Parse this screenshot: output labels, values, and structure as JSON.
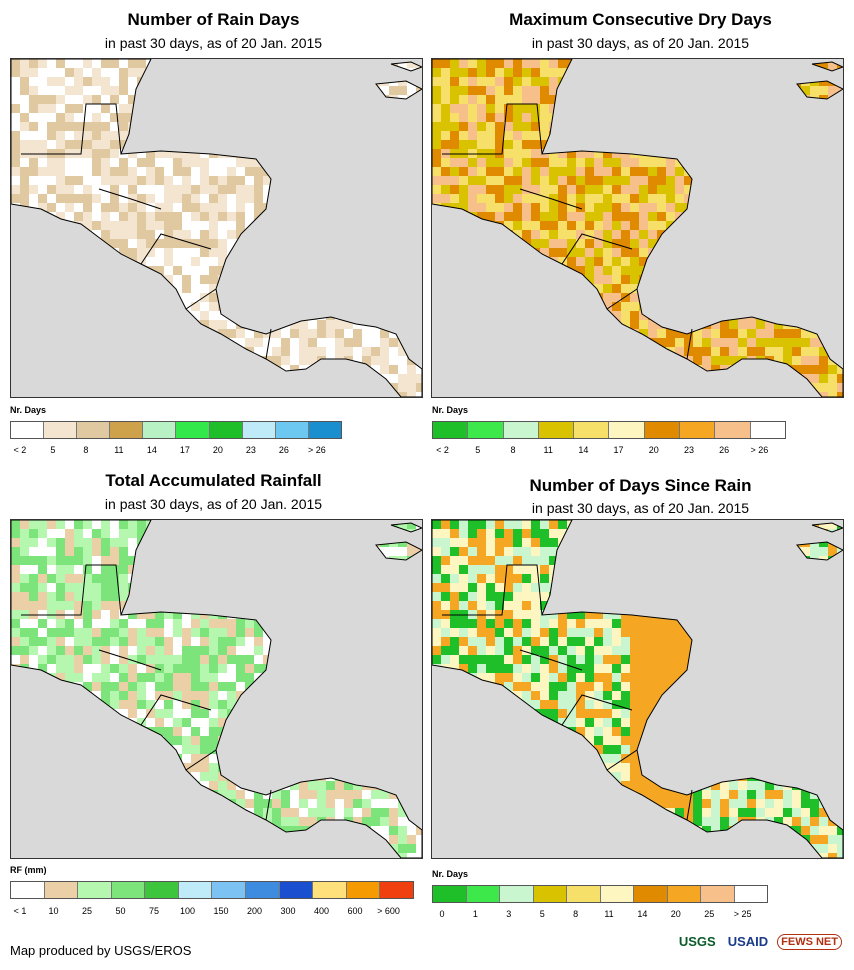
{
  "panels": [
    {
      "title": "Number of Rain Days",
      "subtitle": "in past 30 days, as of 20 Jan. 2015",
      "legend_label": "Nr. Days",
      "colors": [
        "#ffffff",
        "#f3e5cf",
        "#e0c8a0",
        "#cda24a",
        "#b8f2c4",
        "#33e84a",
        "#1fbf2a",
        "#bfeaf7",
        "#6cc8f0",
        "#1a8fd0"
      ],
      "ticks": [
        "< 2",
        "5",
        "8",
        "11",
        "14",
        "17",
        "20",
        "23",
        "26",
        "> 26"
      ],
      "map_palette": [
        "#ffffff",
        "#f3e5cf",
        "#e0c8a0"
      ]
    },
    {
      "title": "Maximum Consecutive Dry Days",
      "subtitle": "in past 30 days, as of 20 Jan. 2015",
      "legend_label": "Nr. Days",
      "colors": [
        "#1fbf2a",
        "#3de84a",
        "#c9f5cf",
        "#d9c200",
        "#f7e06a",
        "#fdf6c0",
        "#e08a00",
        "#f5a623",
        "#f7bf8a",
        "#ffffff"
      ],
      "ticks": [
        "< 2",
        "5",
        "8",
        "11",
        "14",
        "17",
        "20",
        "23",
        "26",
        "> 26"
      ],
      "map_palette": [
        "#d9c200",
        "#f7bf8a",
        "#e08a00",
        "#f7e06a"
      ]
    },
    {
      "title": "Total Accumulated Rainfall",
      "subtitle": "in past 30 days, as of 20 Jan. 2015",
      "legend_label": "RF (mm)",
      "colors": [
        "#ffffff",
        "#ebcfa7",
        "#b6f7b0",
        "#7ce47a",
        "#3dc63d",
        "#bfeaf7",
        "#7cc2f2",
        "#3d8ce0",
        "#1a4fd0",
        "#ffe07a",
        "#f59a00",
        "#f04010"
      ],
      "ticks": [
        "< 1",
        "10",
        "25",
        "50",
        "75",
        "100",
        "150",
        "200",
        "300",
        "400",
        "600",
        "> 600"
      ],
      "map_palette": [
        "#b6f7b0",
        "#7ce47a",
        "#ebcfa7",
        "#ffffff"
      ]
    },
    {
      "title": "Number of Days Since Rain",
      "subtitle": "in past 30 days, as of 20 Jan. 2015",
      "legend_label": "Nr. Days",
      "colors": [
        "#1fbf2a",
        "#3de84a",
        "#c9f5cf",
        "#d9c200",
        "#f7e06a",
        "#fdf6c0",
        "#e08a00",
        "#f5a623",
        "#f7bf8a",
        "#ffffff"
      ],
      "ticks": [
        "0",
        "1",
        "3",
        "5",
        "8",
        "11",
        "14",
        "20",
        "25",
        "> 25"
      ],
      "map_palette": [
        "#c9f5cf",
        "#1fbf2a",
        "#fdf6c0",
        "#f5a623"
      ]
    }
  ],
  "footer": "Map produced by USGS/EROS",
  "logos": [
    "USGS",
    "USAID",
    "FEWS NET"
  ]
}
